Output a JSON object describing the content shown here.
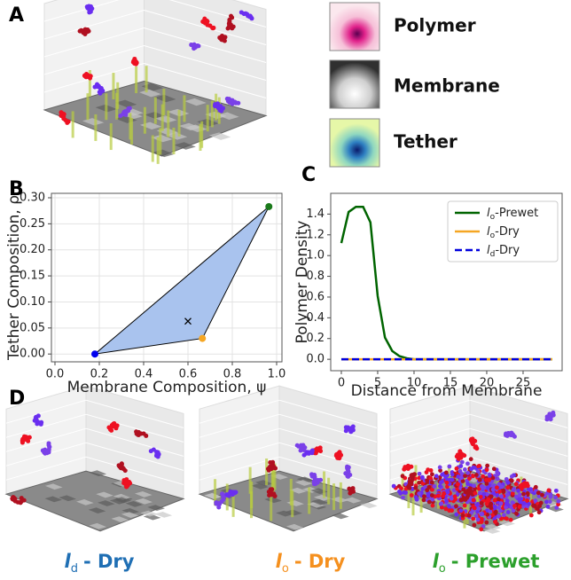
{
  "panel_labels": [
    "A",
    "B",
    "C",
    "D"
  ],
  "panel_a": {
    "legend": [
      "Polymer",
      "Membrane",
      "Tether"
    ]
  },
  "chart_data": [
    {
      "type": "polygon",
      "xlabel": "Membrane Composition, ψ",
      "ylabel": "Tether Composition, ρ",
      "xlim": [
        -0.016,
        1.024
      ],
      "ylim": [
        -0.015,
        0.3085
      ],
      "xticks": [
        {
          "value": 0,
          "label": "0.0"
        },
        {
          "value": 0.2,
          "label": "0.2"
        },
        {
          "value": 0.4,
          "label": "0.4"
        },
        {
          "value": 0.6,
          "label": "0.6"
        },
        {
          "value": 0.8,
          "label": "0.8"
        },
        {
          "value": 1,
          "label": "1.0"
        }
      ],
      "yticks": [
        {
          "value": 0,
          "label": "0.00"
        },
        {
          "value": 0.05,
          "label": "0.05"
        },
        {
          "value": 0.1,
          "label": "0.10"
        },
        {
          "value": 0.15,
          "label": "0.15"
        },
        {
          "value": 0.2,
          "label": "0.20"
        },
        {
          "value": 0.25,
          "label": "0.25"
        },
        {
          "value": 0.3,
          "label": "0.30"
        }
      ],
      "grid": true,
      "fill": "#a9c3ee",
      "x": [
        0.18,
        0.665,
        0.965
      ],
      "y": [
        0,
        0.03,
        0.283
      ],
      "colors": [
        "#0000ee",
        "#f5a623",
        "#1a7a1a"
      ],
      "marker": {
        "x": 0.6,
        "y": 0.063
      }
    },
    {
      "type": "line",
      "xlabel": "Distance from Membrane",
      "ylabel": "Polymer Density",
      "xlim": [
        -1.46,
        30.37
      ],
      "ylim": [
        -0.11,
        1.6
      ],
      "xticks": [
        0,
        5,
        10,
        15,
        20,
        25
      ],
      "yticks": [
        {
          "value": 0,
          "label": "0.0"
        },
        {
          "value": 0.2,
          "label": "0.2"
        },
        {
          "value": 0.4,
          "label": "0.4"
        },
        {
          "value": 0.6,
          "label": "0.6"
        },
        {
          "value": 0.8,
          "label": "0.8"
        },
        {
          "value": 1,
          "label": "1.0"
        },
        {
          "value": 1.2,
          "label": "1.2"
        },
        {
          "value": 1.4,
          "label": "1.4"
        }
      ],
      "legend": "upper right",
      "x": [
        0,
        1,
        2,
        3,
        4,
        5,
        6,
        7,
        8,
        9,
        10,
        11,
        12,
        13,
        14,
        15,
        16,
        17,
        18,
        19,
        20,
        21,
        22,
        23,
        24,
        25,
        26,
        27,
        28,
        29
      ],
      "series": [
        {
          "symbol": "l",
          "subscript": "o",
          "suffix": "-Prewet",
          "color": "#006400",
          "dashed": false,
          "values": [
            1.12,
            1.42,
            1.47,
            1.47,
            1.32,
            0.61,
            0.21,
            0.08,
            0.03,
            0.01,
            0,
            0,
            0,
            0,
            0,
            0,
            0,
            0,
            0,
            0,
            0,
            0,
            0,
            0,
            0,
            0,
            0,
            0,
            0,
            0
          ]
        },
        {
          "symbol": "l",
          "subscript": "o",
          "suffix": "-Dry",
          "color": "#f5a623",
          "dashed": false,
          "values": [
            0,
            0,
            0,
            0,
            0,
            0,
            0,
            0,
            0,
            0,
            0,
            0,
            0,
            0,
            0,
            0,
            0,
            0,
            0,
            0,
            0,
            0,
            0,
            0,
            0,
            0,
            0,
            0,
            0,
            0
          ]
        },
        {
          "symbol": "l",
          "subscript": "d",
          "suffix": "-Dry",
          "color": "#0000dd",
          "dashed": true,
          "values": [
            0,
            0,
            0,
            0,
            0,
            0,
            0,
            0,
            0,
            0,
            0,
            0,
            0,
            0,
            0,
            0,
            0,
            0,
            0,
            0,
            0,
            0,
            0,
            0,
            0,
            0,
            0,
            0,
            0,
            0
          ]
        }
      ]
    }
  ],
  "panel_d": {
    "captions": [
      {
        "symbol": "l",
        "subscript": "d",
        "text": "- Dry",
        "color": "#1f6fb4"
      },
      {
        "symbol": "l",
        "subscript": "o",
        "text": "- Dry",
        "color": "#f5901e"
      },
      {
        "symbol": "l",
        "subscript": "o",
        "text": "- Prewet",
        "color": "#2ca02c"
      }
    ]
  }
}
